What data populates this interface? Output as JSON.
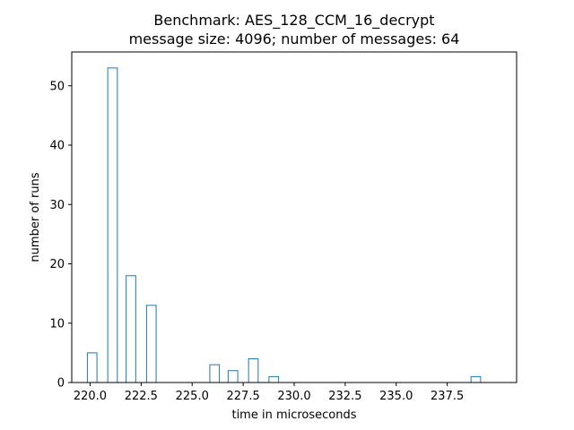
{
  "chart_data": {
    "type": "bar",
    "title": "Benchmark: AES_128_CCM_16_decrypt",
    "subtitle": "message size: 4096; number of messages: 64",
    "xlabel": "time in microseconds",
    "ylabel": "number of runs",
    "xlim": [
      219.1,
      240.9
    ],
    "ylim": [
      0,
      55.7
    ],
    "xticks": [
      220.0,
      222.5,
      225.0,
      227.5,
      230.0,
      232.5,
      235.0,
      237.5
    ],
    "xtick_labels": [
      "220.0",
      "222.5",
      "225.0",
      "227.5",
      "230.0",
      "232.5",
      "235.0",
      "237.5"
    ],
    "yticks": [
      0,
      10,
      20,
      30,
      40,
      50
    ],
    "ytick_labels": [
      "0",
      "10",
      "20",
      "30",
      "40",
      "50"
    ],
    "bar_width": 0.47,
    "bars": [
      {
        "x": 220.1,
        "count": 5
      },
      {
        "x": 221.1,
        "count": 53
      },
      {
        "x": 222.0,
        "count": 18
      },
      {
        "x": 223.0,
        "count": 13
      },
      {
        "x": 226.1,
        "count": 3
      },
      {
        "x": 227.0,
        "count": 2
      },
      {
        "x": 228.0,
        "count": 4
      },
      {
        "x": 229.0,
        "count": 1
      },
      {
        "x": 238.9,
        "count": 1
      }
    ],
    "bar_edge_color": "#1f77b4",
    "bar_fill_color": "#ffffff",
    "grid": false,
    "legend": "none"
  }
}
